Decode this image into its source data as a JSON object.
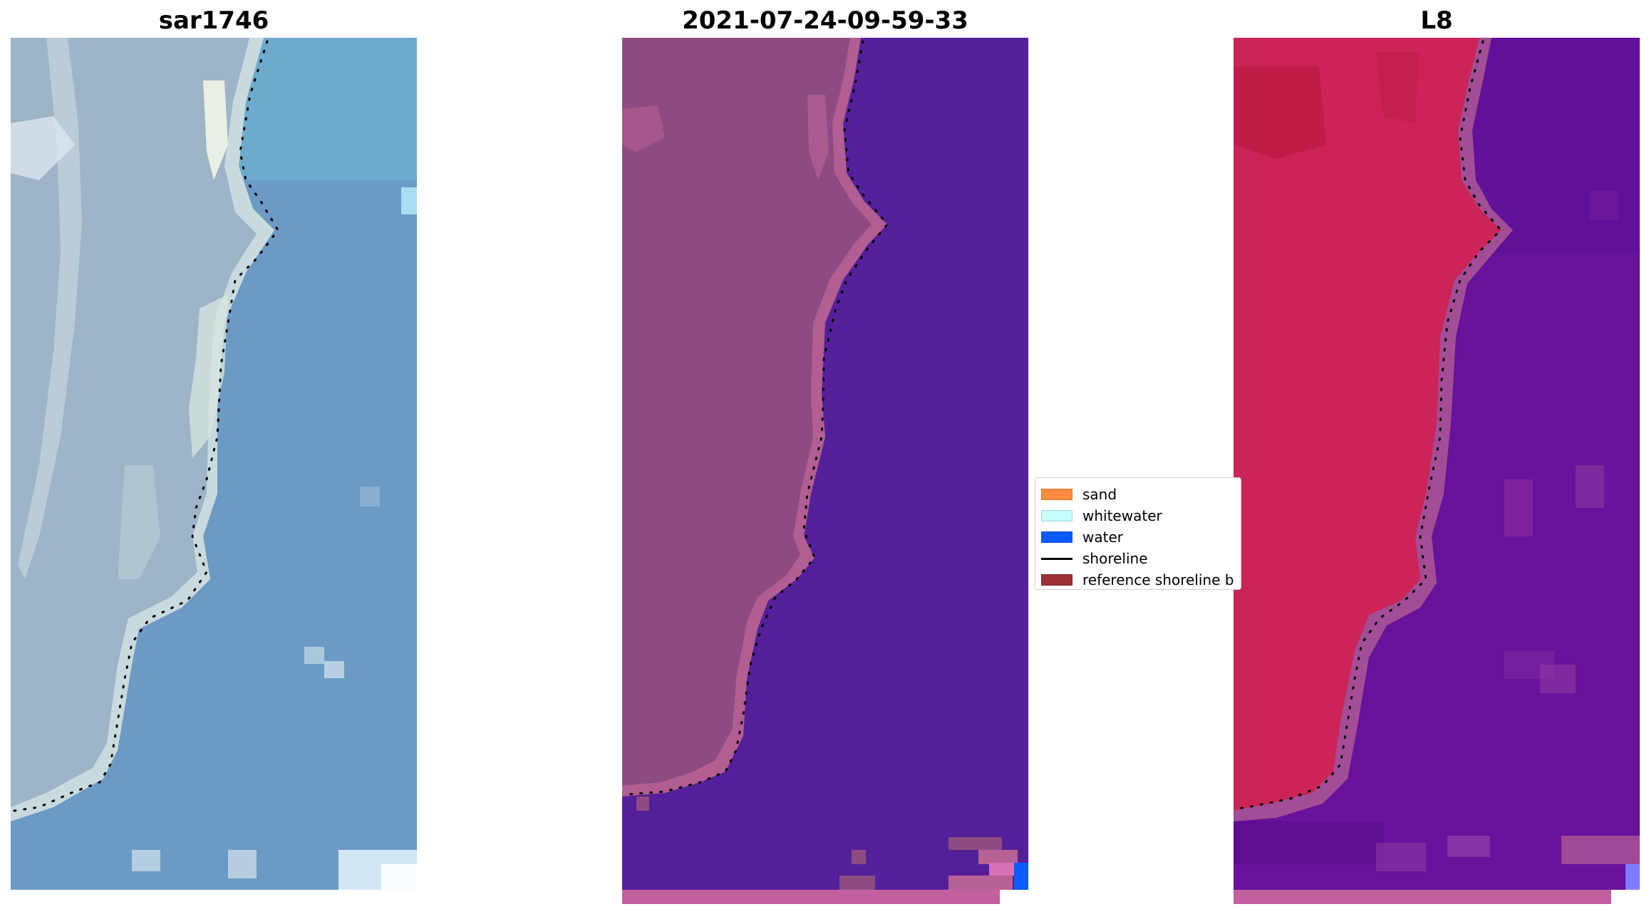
{
  "titles": {
    "left": "sar1746",
    "middle": "2021-07-24-09-59-33",
    "right": "L8"
  },
  "legend": {
    "items": [
      {
        "label": "sand",
        "color": "#ff8c40",
        "kind": "patch"
      },
      {
        "label": "whitewater",
        "color": "#c8fbfb",
        "kind": "patch"
      },
      {
        "label": "water",
        "color": "#0a5cff",
        "kind": "patch"
      },
      {
        "label": "shoreline",
        "color": "#000000",
        "kind": "line"
      },
      {
        "label": "reference shoreline b",
        "color": "#9b3035",
        "kind": "patch"
      }
    ]
  },
  "colors": {
    "rgb_water": "#5f95c4",
    "rgb_land": "#9fb7c9",
    "class_water": "#54209a",
    "class_land": "#8d4b82",
    "class_water_pixel": "#0a5cff",
    "class_bottom_band": "#c2609f",
    "mndwi_land": "#cc2456",
    "mndwi_water": "#66129a",
    "mndwi_bottom_band": "#c2609f",
    "shoreline": "#000000"
  }
}
